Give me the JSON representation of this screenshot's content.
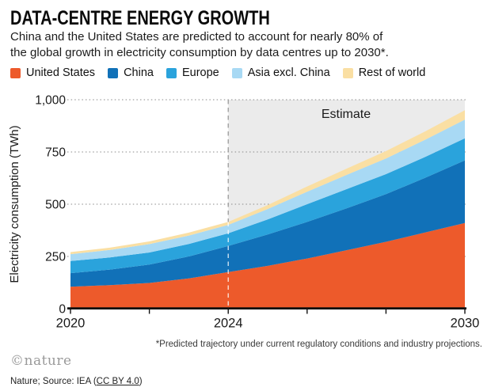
{
  "header": {
    "title": "DATA-CENTRE ENERGY GROWTH",
    "subtitle_line1": "China and the United States are predicted to account for nearly 80% of",
    "subtitle_line2": "the global growth in electricity consumption by data centres up to 2030*."
  },
  "legend": {
    "items": [
      {
        "label": "United States",
        "color": "#ED5A2B"
      },
      {
        "label": "China",
        "color": "#1171B8"
      },
      {
        "label": "Europe",
        "color": "#2AA3DC"
      },
      {
        "label": "Asia excl. China",
        "color": "#A8D9F4"
      },
      {
        "label": "Rest of world",
        "color": "#FADFA3"
      }
    ]
  },
  "chart_data": {
    "type": "area",
    "stacked": true,
    "title": "DATA-CENTRE ENERGY GROWTH",
    "xlabel": "",
    "ylabel": "Electricity consumption (TWh)",
    "x": [
      2020,
      2021,
      2022,
      2023,
      2024,
      2025,
      2026,
      2027,
      2028,
      2029,
      2030
    ],
    "series": [
      {
        "name": "United States",
        "values": [
          105,
          113,
          123,
          145,
          175,
          205,
          240,
          280,
          320,
          365,
          410
        ]
      },
      {
        "name": "China",
        "values": [
          65,
          74,
          88,
          105,
          125,
          150,
          175,
          200,
          228,
          262,
          300
        ]
      },
      {
        "name": "Europe",
        "values": [
          58,
          58,
          58,
          60,
          61,
          72,
          85,
          92,
          96,
          100,
          105
        ]
      },
      {
        "name": "Asia excl. China",
        "values": [
          33,
          36,
          40,
          40,
          40,
          50,
          60,
          68,
          75,
          82,
          90
        ]
      },
      {
        "name": "Rest of world",
        "values": [
          10,
          11,
          13,
          14,
          14,
          19,
          25,
          30,
          35,
          40,
          45
        ]
      }
    ],
    "totals_by_year": [
      271,
      292,
      322,
      364,
      415,
      496,
      585,
      670,
      754,
      849,
      950
    ],
    "xticks": [
      {
        "value": 2020,
        "label": "2020"
      },
      {
        "value": 2024,
        "label": "2024"
      },
      {
        "value": 2030,
        "label": "2030"
      }
    ],
    "yticks": [
      {
        "value": 0,
        "label": "0"
      },
      {
        "value": 250,
        "label": "250"
      },
      {
        "value": 500,
        "label": "500"
      },
      {
        "value": 750,
        "label": "750"
      },
      {
        "value": 1000,
        "label": "1,000"
      }
    ],
    "xlim": [
      2020,
      2030
    ],
    "ylim": [
      0,
      1000
    ],
    "grid": "dotted-horizontal",
    "legend_position": "top",
    "annotations": {
      "estimate_label": "Estimate",
      "estimate_region_start": 2024,
      "dashed_line_x": 2024
    },
    "colors": {
      "estimate_bg": "#EBEBEB",
      "grid": "#8A8A8A",
      "axis": "#111111",
      "dashed_line": "#9B9B9B",
      "dashed_line_over_area": "rgba(255,255,255,0.85)",
      "tick_text": "#1a1a1a"
    }
  },
  "footnote": "*Predicted trajectory under current regulatory conditions and industry projections.",
  "footer": {
    "logo": "©nature",
    "source_prefix": "Nature; Source: IEA (",
    "source_link": "CC BY 4.0",
    "source_suffix": ")"
  }
}
